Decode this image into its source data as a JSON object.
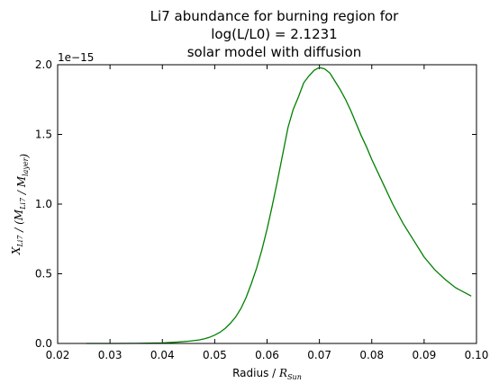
{
  "chart_data": {
    "type": "line",
    "title_lines": [
      "Li7 abundance for burning region for",
      "log(L/L0) = 2.1231",
      "solar model with diffusion"
    ],
    "xlabel_prefix": "Radius / ",
    "xlabel_math": "R",
    "xlabel_sub": "Sun",
    "ylabel_text": "X_Li7 / (M_Li7 / M_layer)",
    "offset_text": "1e−15",
    "xlim": [
      0.02,
      0.1
    ],
    "ylim": [
      0.0,
      2.0
    ],
    "x_ticks": [
      0.02,
      0.03,
      0.04,
      0.05,
      0.06,
      0.07,
      0.08,
      0.09,
      0.1
    ],
    "x_tick_labels": [
      "0.02",
      "0.03",
      "0.04",
      "0.05",
      "0.06",
      "0.07",
      "0.08",
      "0.09",
      "0.10"
    ],
    "y_ticks": [
      0.0,
      0.5,
      1.0,
      1.5,
      2.0
    ],
    "y_tick_labels": [
      "0.0",
      "0.5",
      "1.0",
      "1.5",
      "2.0"
    ],
    "grid": false,
    "series": [
      {
        "color": "#008000",
        "x": [
          0.0255,
          0.03,
          0.035,
          0.04,
          0.043,
          0.045,
          0.047,
          0.048,
          0.049,
          0.05,
          0.051,
          0.052,
          0.053,
          0.054,
          0.055,
          0.056,
          0.057,
          0.058,
          0.059,
          0.06,
          0.061,
          0.062,
          0.063,
          0.064,
          0.065,
          0.066,
          0.067,
          0.068,
          0.069,
          0.07,
          0.071,
          0.072,
          0.073,
          0.074,
          0.075,
          0.076,
          0.077,
          0.078,
          0.079,
          0.08,
          0.082,
          0.084,
          0.086,
          0.088,
          0.09,
          0.092,
          0.094,
          0.096,
          0.098,
          0.099
        ],
        "y": [
          0.0,
          0.0,
          0.001,
          0.004,
          0.01,
          0.016,
          0.025,
          0.033,
          0.044,
          0.06,
          0.08,
          0.108,
          0.145,
          0.19,
          0.25,
          0.33,
          0.43,
          0.54,
          0.67,
          0.82,
          0.99,
          1.17,
          1.36,
          1.55,
          1.68,
          1.77,
          1.87,
          1.92,
          1.96,
          1.98,
          1.97,
          1.94,
          1.88,
          1.82,
          1.75,
          1.67,
          1.58,
          1.49,
          1.41,
          1.32,
          1.16,
          1.0,
          0.86,
          0.74,
          0.62,
          0.53,
          0.46,
          0.4,
          0.36,
          0.34
        ]
      }
    ]
  }
}
